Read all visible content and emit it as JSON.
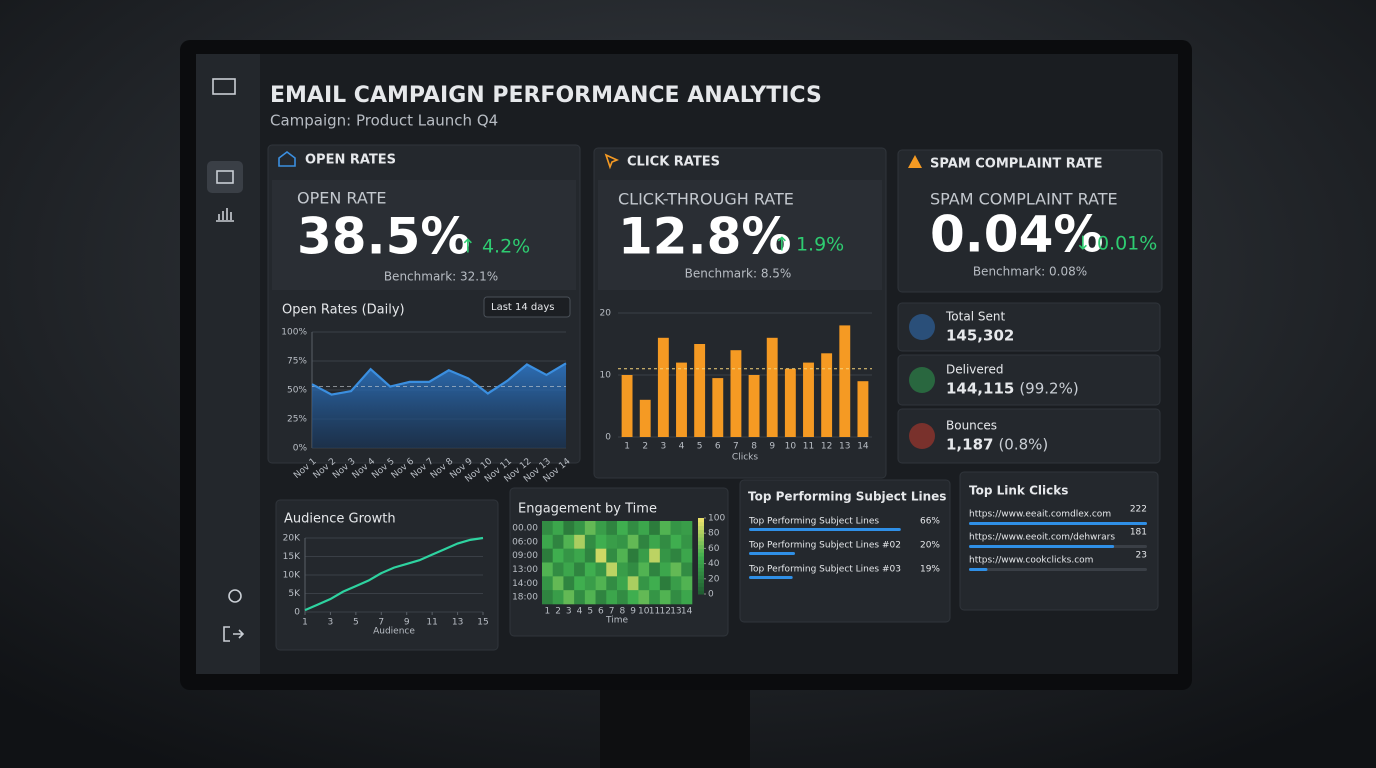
{
  "header": {
    "title": "EMAIL CAMPAIGN PERFORMANCE ANALYTICS",
    "subtitle": "Campaign: Product Launch Q4"
  },
  "kpis": [
    {
      "heading": "OPEN RATES",
      "label": "OPEN RATE",
      "value": "38.5%",
      "change": "↑ 4.2%",
      "benchmark": "Benchmark: 32.1%"
    },
    {
      "heading": "CLICK RATES",
      "label": "CLICK-THROUGH RATE",
      "value": "12.8%",
      "change": "↑ 1.9%",
      "benchmark": "Benchmark: 8.5%"
    },
    {
      "heading": "SPAM COMPLAINT RATE",
      "label": "SPAM COMPLAINT RATE",
      "value": "0.04%",
      "change": "↓ 0.01%",
      "benchmark": "Benchmark: 0.08%"
    }
  ],
  "stats": [
    {
      "label": "Total Sent",
      "value": "145,302"
    },
    {
      "label": "Delivered",
      "value": "144,115",
      "share": "(99.2%)"
    },
    {
      "label": "Bounces",
      "value": "1,187",
      "share": "(0.8%)"
    }
  ],
  "chart_data": [
    {
      "type": "line",
      "title": "Open Rates (Daily)",
      "filter": "Last 14 days",
      "color": "#3b8fe0",
      "area": true,
      "categories": [
        "Nov 1",
        "Nov 2",
        "Nov 3",
        "Nov 4",
        "Nov 5",
        "Nov 6",
        "Nov 7",
        "Nov 8",
        "Nov 9",
        "Nov 10",
        "Nov 11",
        "Nov 12",
        "Nov 13",
        "Nov 14"
      ],
      "values": [
        55,
        46,
        49,
        68,
        53,
        57,
        57,
        67,
        60,
        47,
        58,
        72,
        63,
        73
      ],
      "reference": 53,
      "ylim": [
        0,
        100
      ],
      "yticks": [
        {
          "value": 0,
          "label": "0%"
        },
        {
          "value": 25,
          "label": "25%"
        },
        {
          "value": 50,
          "label": "50%"
        },
        {
          "value": 75,
          "label": "75%"
        },
        {
          "value": 100,
          "label": "100%"
        }
      ],
      "grid": true
    },
    {
      "type": "bar",
      "color": "#f59a23",
      "x_label": "Clicks",
      "categories": [
        "1",
        "2",
        "3",
        "4",
        "5",
        "6",
        "7",
        "8",
        "9",
        "10",
        "11",
        "12",
        "13",
        "14"
      ],
      "values": [
        10,
        6,
        16,
        12,
        15,
        9.5,
        14,
        10,
        16,
        11,
        12,
        13.5,
        18,
        9
      ],
      "reference": 11,
      "ylim": [
        0,
        20
      ],
      "yticks": [
        0,
        10,
        20
      ],
      "grid": true
    },
    {
      "type": "line",
      "title": "Audience Growth",
      "color": "#2ed3a0",
      "x_label": "Audience",
      "x": [
        1,
        2,
        3,
        4,
        5,
        6,
        7,
        8,
        9,
        10,
        11,
        12,
        13,
        14,
        15
      ],
      "values": [
        500,
        2000,
        3500,
        5500,
        7000,
        8500,
        10500,
        12000,
        13000,
        14000,
        15500,
        17000,
        18500,
        19500,
        20000
      ],
      "xlim": [
        1,
        15
      ],
      "xticks": [
        1,
        3,
        5,
        7,
        9,
        11,
        13,
        15
      ],
      "ylim": [
        0,
        20000
      ],
      "yticks": [
        {
          "value": 0,
          "label": "0"
        },
        {
          "value": 5000,
          "label": "5K"
        },
        {
          "value": 10000,
          "label": "10K"
        },
        {
          "value": 15000,
          "label": "15K"
        },
        {
          "value": 20000,
          "label": "20K"
        }
      ],
      "grid": true
    },
    {
      "type": "heatmap",
      "title": "Engagement by Time",
      "x_label": "Time",
      "rows": [
        "00.00",
        "06:00",
        "09:00",
        "13:00",
        "14:00",
        "18:00"
      ],
      "categories": [
        "1",
        "2",
        "3",
        "4",
        "5",
        "6",
        "7",
        "8",
        "9",
        "10",
        "11",
        "12",
        "13",
        "14"
      ],
      "values": [
        [
          30,
          45,
          20,
          35,
          60,
          40,
          25,
          50,
          30,
          45,
          20,
          55,
          35,
          40
        ],
        [
          45,
          25,
          55,
          80,
          30,
          50,
          40,
          35,
          60,
          25,
          45,
          30,
          50,
          35
        ],
        [
          20,
          50,
          35,
          45,
          25,
          90,
          30,
          55,
          20,
          40,
          85,
          35,
          25,
          45
        ],
        [
          55,
          30,
          45,
          25,
          50,
          35,
          85,
          40,
          30,
          55,
          25,
          45,
          60,
          30
        ],
        [
          35,
          60,
          25,
          50,
          40,
          55,
          30,
          45,
          80,
          35,
          50,
          20,
          40,
          55
        ],
        [
          25,
          40,
          60,
          30,
          55,
          25,
          45,
          30,
          50,
          60,
          35,
          55,
          30,
          45
        ]
      ],
      "zlim": [
        0,
        100
      ],
      "zticks": [
        0,
        20,
        40,
        60,
        80,
        100
      ]
    }
  ],
  "subject_lines": {
    "title": "Top Performing Subject Lines",
    "items": [
      {
        "name": "Top Performing Subject Lines",
        "value": 66,
        "label": "66%"
      },
      {
        "name": "Top Performing Subject Lines #02",
        "value": 20,
        "label": "20%"
      },
      {
        "name": "Top Performing Subject Lines #03",
        "value": 19,
        "label": "19%"
      }
    ]
  },
  "link_clicks": {
    "title": "Top Link Clicks",
    "items": [
      {
        "url": "https://www.eeait.comdlex.com",
        "value": 222
      },
      {
        "url": "https://www.eeoit.com/dehwrars",
        "value": 181
      },
      {
        "url": "https://www.cookclicks.com",
        "value": 23
      }
    ]
  }
}
